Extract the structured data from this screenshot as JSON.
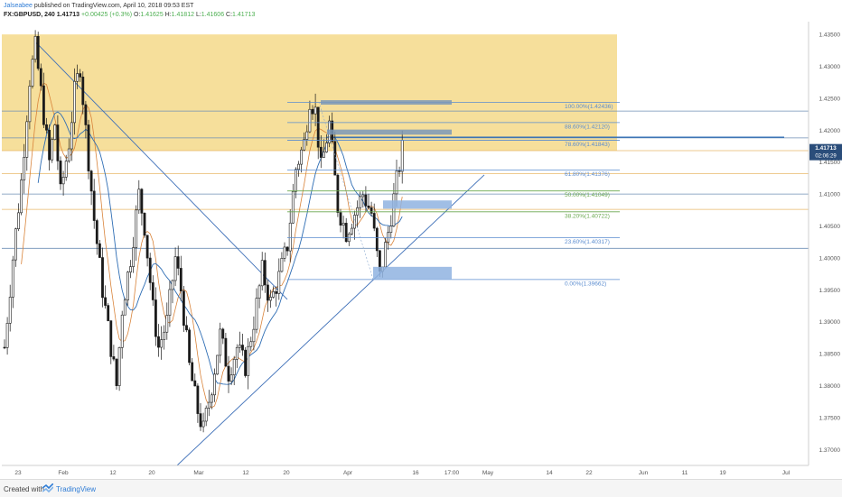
{
  "header": {
    "author": "Jalseabee",
    "published": "published on TradingView.com, April 10, 2018 09:53 EST",
    "symbol": "FX:GBPUSD, 240",
    "price": "1.41713",
    "change": "+0.00425 (+0.3%)",
    "ohlc": {
      "o_label": "O:",
      "o": "1.41625",
      "h_label": "H:",
      "h": "1.41812",
      "l_label": "L:",
      "l": "1.41606",
      "c_label": "C:",
      "c": "1.41713"
    }
  },
  "footer": {
    "created_with": "Created with",
    "brand": "TradingView"
  },
  "colors": {
    "zone": "#f5d98a",
    "fib_blue": "#5b8ccf",
    "fib_green": "#6aa84f",
    "candles": "#1a1a1a",
    "ma": "#2e6db4",
    "price_badge": "#2a4d7a"
  },
  "chart_data": {
    "type": "candlestick",
    "symbol": "FX:GBPUSD",
    "interval": "240",
    "ylim": [
      1.3675,
      1.437
    ],
    "y_ticks": [
      "1.43500",
      "1.43000",
      "1.42500",
      "1.42000",
      "1.41500",
      "1.41000",
      "1.40500",
      "1.40000",
      "1.39500",
      "1.39000",
      "1.38500",
      "1.38000",
      "1.37500",
      "1.37000"
    ],
    "x_ticks": [
      "23",
      "Feb",
      "12",
      "20",
      "Mar",
      "12",
      "20",
      "Apr",
      "16",
      "17:00",
      "May",
      "14",
      "22",
      "Jun",
      "11",
      "19",
      "Jul"
    ],
    "current_price": "1.41713",
    "countdown": "02:06:29",
    "fib_levels": [
      {
        "label": "100.00%(1.42436)",
        "value": 1.42436
      },
      {
        "label": "88.60%(1.42120)",
        "value": 1.4212
      },
      {
        "label": "78.60%(1.41843)",
        "value": 1.41843
      },
      {
        "label": "61.80%(1.41376)",
        "value": 1.41376
      },
      {
        "label": "50.00%(1.41049)",
        "value": 1.41049
      },
      {
        "label": "38.20%(1.40722)",
        "value": 1.40722
      },
      {
        "label": "23.60%(1.40317)",
        "value": 1.40317
      },
      {
        "label": "0.00%(1.39662)",
        "value": 1.39662
      }
    ],
    "supply_zone": {
      "top": 1.435,
      "bottom": 1.4168
    },
    "key_path": [
      [
        0,
        1.386
      ],
      [
        3,
        1.4
      ],
      [
        6,
        1.412
      ],
      [
        9,
        1.428
      ],
      [
        11,
        1.433
      ],
      [
        13,
        1.426
      ],
      [
        16,
        1.415
      ],
      [
        18,
        1.421
      ],
      [
        20,
        1.41
      ],
      [
        23,
        1.418
      ],
      [
        25,
        1.426
      ],
      [
        27,
        1.43
      ],
      [
        29,
        1.42
      ],
      [
        32,
        1.406
      ],
      [
        35,
        1.395
      ],
      [
        38,
        1.386
      ],
      [
        40,
        1.38
      ],
      [
        42,
        1.392
      ],
      [
        45,
        1.4
      ],
      [
        48,
        1.41
      ],
      [
        50,
        1.405
      ],
      [
        53,
        1.392
      ],
      [
        55,
        1.386
      ],
      [
        58,
        1.39
      ],
      [
        61,
        1.4
      ],
      [
        63,
        1.395
      ],
      [
        66,
        1.383
      ],
      [
        69,
        1.376
      ],
      [
        71,
        1.373
      ],
      [
        74,
        1.38
      ],
      [
        77,
        1.388
      ],
      [
        80,
        1.382
      ],
      [
        83,
        1.386
      ],
      [
        86,
        1.383
      ],
      [
        89,
        1.39
      ],
      [
        92,
        1.398
      ],
      [
        95,
        1.393
      ],
      [
        98,
        1.397
      ],
      [
        101,
        1.402
      ],
      [
        104,
        1.414
      ],
      [
        107,
        1.418
      ],
      [
        109,
        1.425
      ],
      [
        111,
        1.423
      ],
      [
        113,
        1.414
      ],
      [
        116,
        1.421
      ],
      [
        119,
        1.408
      ],
      [
        122,
        1.404
      ],
      [
        125,
        1.407
      ],
      [
        128,
        1.41
      ],
      [
        131,
        1.407
      ],
      [
        134,
        1.397
      ],
      [
        137,
        1.404
      ],
      [
        140,
        1.412
      ],
      [
        142,
        1.417
      ]
    ]
  }
}
